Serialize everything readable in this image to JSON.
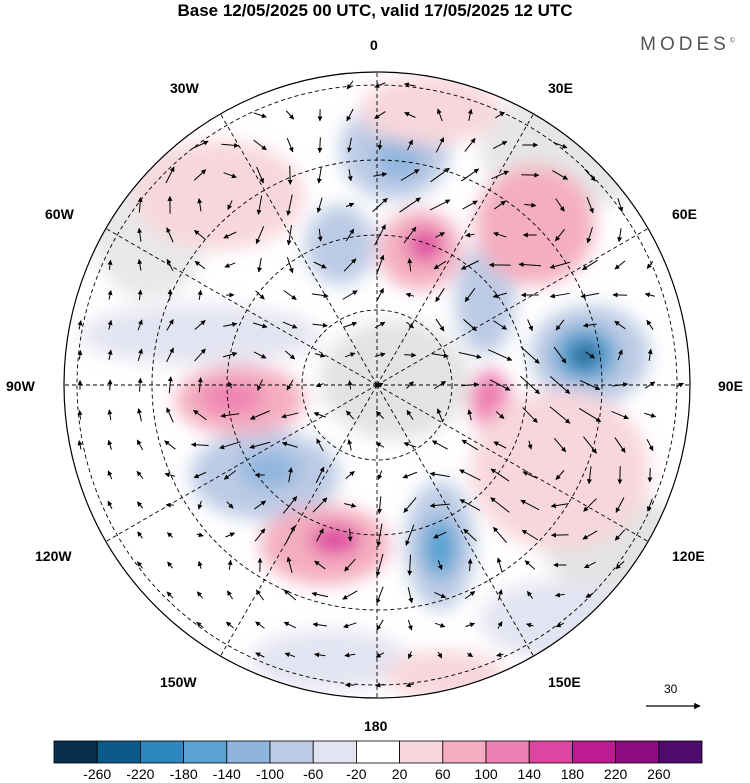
{
  "title": "Base 12/05/2025 00 UTC, valid 17/05/2025 12 UTC",
  "brand": "MODES",
  "brand_mark": "©",
  "map": {
    "projection": "south-polar-stereographic",
    "meridian_labels": {
      "lon_0": "0",
      "lon_30e": "30E",
      "lon_60e": "60E",
      "lon_90e": "90E",
      "lon_120e": "120E",
      "lon_150e": "150E",
      "lon_180": "180",
      "lon_150w": "150W",
      "lon_120w": "120W",
      "lon_90w": "90W",
      "lon_60w": "60W",
      "lon_30w": "30W"
    },
    "reference_vector_label": "30",
    "field": "anomaly field with wind vectors"
  },
  "colorbar": {
    "colors": [
      "#08304d",
      "#0b5a8a",
      "#2e86be",
      "#5aa2d2",
      "#8fb5de",
      "#bccbe5",
      "#e3e4f2",
      "#ffffff",
      "#f8d7dc",
      "#f4aec0",
      "#ee7fb2",
      "#de45a0",
      "#bd1b8f",
      "#8a0c7e",
      "#4f0a6e"
    ],
    "ticks": [
      "-260",
      "-220",
      "-180",
      "-140",
      "-100",
      "-60",
      "-20",
      "20",
      "60",
      "100",
      "140",
      "180",
      "220",
      "260"
    ]
  }
}
